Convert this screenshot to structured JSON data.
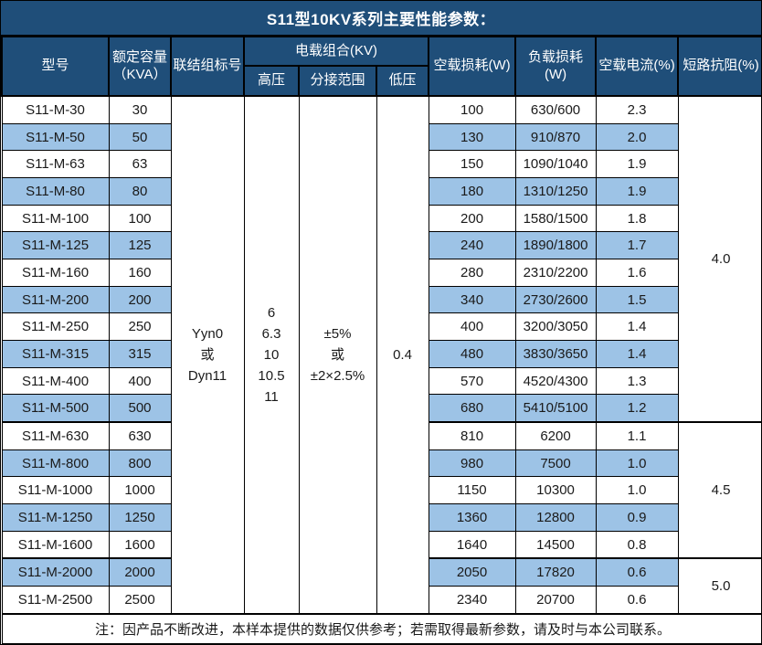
{
  "title": "S11型10KV系列主要性能参数：",
  "colors": {
    "header_bg": "#1F4E79",
    "header_text": "#FFFFFF",
    "alt_row_bg": "#9DC3E6",
    "border": "#000000",
    "body_text": "#1A1A1A"
  },
  "header": {
    "model": "型号",
    "capacity_line1": "额定容量",
    "capacity_line2": "（KVA）",
    "vector_group": "联结组标号",
    "voltage_combo": "电载组合(KV)",
    "hv": "高压",
    "tap_range": "分接范围",
    "lv": "低压",
    "no_load_loss": "空载损耗(W)",
    "load_loss": "负载损耗(W)",
    "no_load_current": "空载电流(%)",
    "short_circuit_impedance": "短路抗阻(%)"
  },
  "shared": {
    "vector_group_lines": [
      "Yyn0",
      "或",
      "Dyn11"
    ],
    "hv_lines": [
      "6",
      "6.3",
      "10",
      "10.5",
      "11"
    ],
    "tap_range_lines": [
      "±5%",
      "或",
      "±2×2.5%"
    ],
    "lv": "0.4"
  },
  "impedance_groups": [
    {
      "value": "4.0",
      "rows": 12
    },
    {
      "value": "4.5",
      "rows": 5
    },
    {
      "value": "5.0",
      "rows": 2
    }
  ],
  "rows": [
    {
      "model": "S11-M-30",
      "capacity": "30",
      "no_load_loss": "100",
      "load_loss": "630/600",
      "no_load_current": "2.3"
    },
    {
      "model": "S11-M-50",
      "capacity": "50",
      "no_load_loss": "130",
      "load_loss": "910/870",
      "no_load_current": "2.0"
    },
    {
      "model": "S11-M-63",
      "capacity": "63",
      "no_load_loss": "150",
      "load_loss": "1090/1040",
      "no_load_current": "1.9"
    },
    {
      "model": "S11-M-80",
      "capacity": "80",
      "no_load_loss": "180",
      "load_loss": "1310/1250",
      "no_load_current": "1.9"
    },
    {
      "model": "S11-M-100",
      "capacity": "100",
      "no_load_loss": "200",
      "load_loss": "1580/1500",
      "no_load_current": "1.8"
    },
    {
      "model": "S11-M-125",
      "capacity": "125",
      "no_load_loss": "240",
      "load_loss": "1890/1800",
      "no_load_current": "1.7"
    },
    {
      "model": "S11-M-160",
      "capacity": "160",
      "no_load_loss": "280",
      "load_loss": "2310/2200",
      "no_load_current": "1.6"
    },
    {
      "model": "S11-M-200",
      "capacity": "200",
      "no_load_loss": "340",
      "load_loss": "2730/2600",
      "no_load_current": "1.5"
    },
    {
      "model": "S11-M-250",
      "capacity": "250",
      "no_load_loss": "400",
      "load_loss": "3200/3050",
      "no_load_current": "1.4"
    },
    {
      "model": "S11-M-315",
      "capacity": "315",
      "no_load_loss": "480",
      "load_loss": "3830/3650",
      "no_load_current": "1.4"
    },
    {
      "model": "S11-M-400",
      "capacity": "400",
      "no_load_loss": "570",
      "load_loss": "4520/4300",
      "no_load_current": "1.3"
    },
    {
      "model": "S11-M-500",
      "capacity": "500",
      "no_load_loss": "680",
      "load_loss": "5410/5100",
      "no_load_current": "1.2"
    },
    {
      "model": "S11-M-630",
      "capacity": "630",
      "no_load_loss": "810",
      "load_loss": "6200",
      "no_load_current": "1.1"
    },
    {
      "model": "S11-M-800",
      "capacity": "800",
      "no_load_loss": "980",
      "load_loss": "7500",
      "no_load_current": "1.0"
    },
    {
      "model": "S11-M-1000",
      "capacity": "1000",
      "no_load_loss": "1150",
      "load_loss": "10300",
      "no_load_current": "1.0"
    },
    {
      "model": "S11-M-1250",
      "capacity": "1250",
      "no_load_loss": "1360",
      "load_loss": "12800",
      "no_load_current": "0.9"
    },
    {
      "model": "S11-M-1600",
      "capacity": "1600",
      "no_load_loss": "1640",
      "load_loss": "14500",
      "no_load_current": "0.8"
    },
    {
      "model": "S11-M-2000",
      "capacity": "2000",
      "no_load_loss": "2050",
      "load_loss": "17820",
      "no_load_current": "0.6"
    },
    {
      "model": "S11-M-2500",
      "capacity": "2500",
      "no_load_loss": "2340",
      "load_loss": "20700",
      "no_load_current": "0.6"
    }
  ],
  "footnote": "注：因产品不断改进，本样本提供的数据仅供参考；若需取得最新参数，请及时与本公司联系。"
}
